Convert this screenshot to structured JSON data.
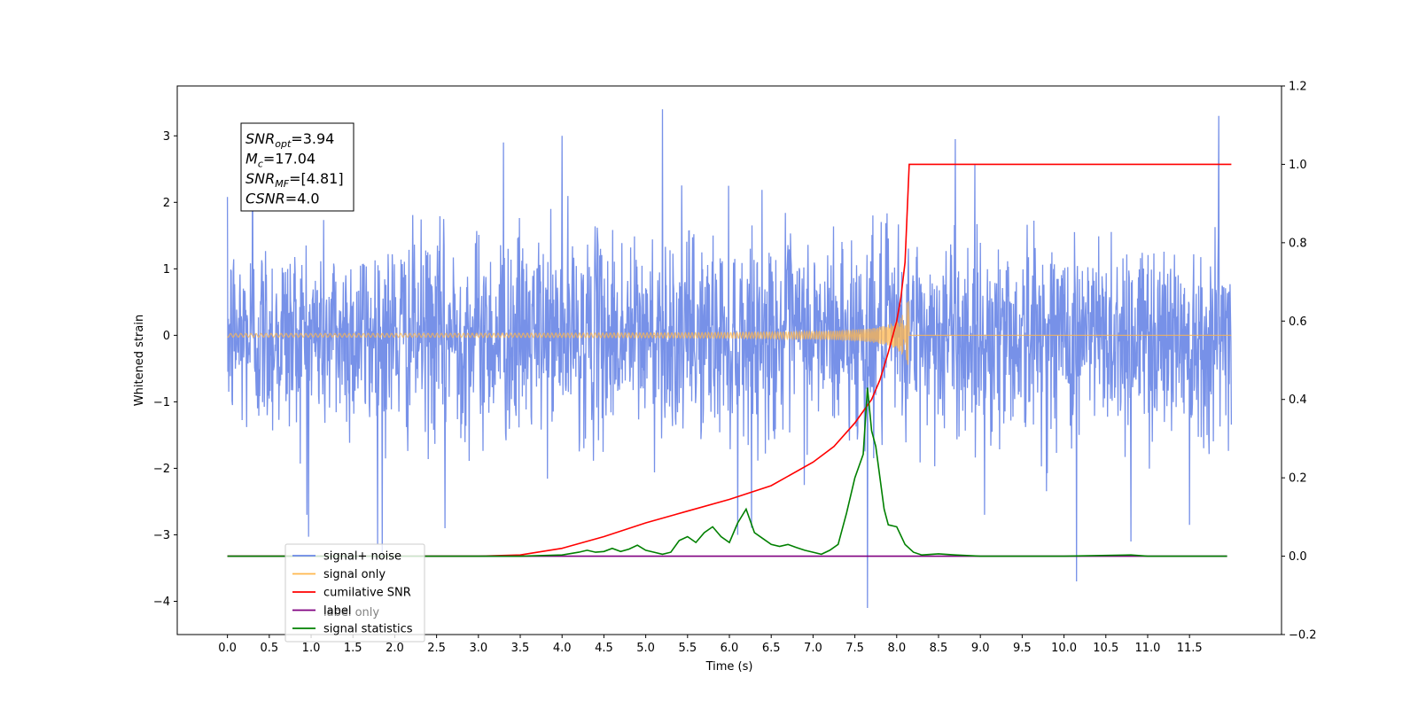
{
  "chart_data": {
    "type": "line",
    "xlabel": "Time (s)",
    "ylabel_left": "Whitened strain",
    "ylabel_right": "",
    "xlim": [
      -0.6,
      12.6
    ],
    "ylim_left": [
      -4.5,
      3.75
    ],
    "ylim_right": [
      -0.2,
      1.2
    ],
    "x_ticks": [
      0.0,
      0.5,
      1.0,
      1.5,
      2.0,
      2.5,
      3.0,
      3.5,
      4.0,
      4.5,
      5.0,
      5.5,
      6.0,
      6.5,
      7.0,
      7.5,
      8.0,
      8.5,
      9.0,
      9.5,
      10.0,
      10.5,
      11.0,
      11.5
    ],
    "x_tick_labels": [
      "0.0",
      "0.5",
      "1.0",
      "1.5",
      "2.0",
      "2.5",
      "3.0",
      "3.5",
      "4.0",
      "4.5",
      "5.0",
      "5.5",
      "6.0",
      "6.5",
      "7.0",
      "7.5",
      "8.0",
      "8.5",
      "9.0",
      "9.5",
      "10.0",
      "10.5",
      "11.0",
      "11.5"
    ],
    "y_left_ticks": [
      3,
      2,
      1,
      0,
      -1,
      -2,
      -3,
      -4
    ],
    "y_left_tick_labels": [
      "3",
      "2",
      "1",
      "0",
      "−1",
      "−2",
      "−3",
      "−4"
    ],
    "y_right_ticks": [
      1.2,
      1.0,
      0.8,
      0.6,
      0.4,
      0.2,
      0.0,
      -0.2
    ],
    "y_right_tick_labels": [
      "1.2",
      "1.0",
      "0.8",
      "0.6",
      "0.4",
      "0.2",
      "0.0",
      "−0.2"
    ],
    "grid": false,
    "legend_position": "bottom-left",
    "series": [
      {
        "name": "signal+ noise",
        "axis": "left",
        "color": "#6b88e6",
        "kind": "noise",
        "x_range": [
          0.0,
          12.0
        ],
        "sigma": 0.75,
        "spikes": [
          {
            "x": 1.85,
            "y": -3.3
          },
          {
            "x": 5.2,
            "y": 3.4
          },
          {
            "x": 7.65,
            "y": -4.1
          },
          {
            "x": 10.15,
            "y": -3.7
          },
          {
            "x": 11.85,
            "y": 3.3
          },
          {
            "x": 0.95,
            "y": -2.7
          },
          {
            "x": 2.6,
            "y": -2.9
          },
          {
            "x": 4.0,
            "y": 3.0
          },
          {
            "x": 9.05,
            "y": -2.7
          },
          {
            "x": 11.5,
            "y": -2.85
          },
          {
            "x": 6.1,
            "y": -3.0
          },
          {
            "x": 3.3,
            "y": 2.9
          },
          {
            "x": 8.7,
            "y": 2.95
          },
          {
            "x": 10.8,
            "y": -3.1
          },
          {
            "x": 0.3,
            "y": 3.1
          }
        ]
      },
      {
        "name": "signal only",
        "axis": "left",
        "color": "#ffb74d",
        "kind": "chirp",
        "x_range": [
          0.0,
          12.0
        ],
        "merger_time": 8.15,
        "peak_amplitude": 0.72
      },
      {
        "name": "cumilative SNR",
        "axis": "right",
        "color": "#ff0000",
        "x": [
          0.0,
          1.0,
          2.0,
          3.0,
          3.5,
          4.0,
          4.5,
          5.0,
          5.5,
          6.0,
          6.5,
          7.0,
          7.25,
          7.5,
          7.7,
          7.8,
          7.9,
          8.0,
          8.05,
          8.1,
          8.15,
          9.0,
          10.0,
          11.0,
          12.0
        ],
        "y": [
          0.0,
          0.0,
          0.0,
          0.0,
          0.003,
          0.02,
          0.05,
          0.085,
          0.115,
          0.145,
          0.18,
          0.24,
          0.28,
          0.34,
          0.4,
          0.45,
          0.52,
          0.6,
          0.66,
          0.75,
          1.0,
          1.0,
          1.0,
          1.0,
          1.0
        ]
      },
      {
        "name": "label",
        "axis": "right",
        "color": "#800080",
        "x": [
          0.0,
          11.95
        ],
        "y": [
          0.0,
          0.0
        ]
      },
      {
        "name": "label only",
        "axis": "right",
        "color": "#800080",
        "hidden": true,
        "x": [],
        "y": []
      },
      {
        "name": "signal statistics",
        "axis": "right",
        "color": "#008000",
        "x": [
          0.0,
          3.5,
          4.0,
          4.2,
          4.3,
          4.4,
          4.5,
          4.6,
          4.7,
          4.8,
          4.9,
          5.0,
          5.1,
          5.2,
          5.3,
          5.4,
          5.5,
          5.6,
          5.7,
          5.8,
          5.9,
          6.0,
          6.1,
          6.2,
          6.3,
          6.4,
          6.5,
          6.6,
          6.7,
          6.8,
          6.9,
          7.0,
          7.1,
          7.2,
          7.3,
          7.4,
          7.5,
          7.6,
          7.65,
          7.7,
          7.75,
          7.8,
          7.85,
          7.9,
          8.0,
          8.1,
          8.2,
          8.3,
          8.5,
          8.7,
          9.0,
          10.0,
          10.8,
          11.0,
          11.95
        ],
        "y": [
          0.0,
          0.0,
          0.003,
          0.01,
          0.015,
          0.01,
          0.012,
          0.02,
          0.012,
          0.018,
          0.028,
          0.015,
          0.01,
          0.005,
          0.01,
          0.04,
          0.05,
          0.035,
          0.06,
          0.075,
          0.05,
          0.035,
          0.085,
          0.12,
          0.06,
          0.045,
          0.03,
          0.025,
          0.03,
          0.022,
          0.015,
          0.01,
          0.005,
          0.015,
          0.03,
          0.11,
          0.2,
          0.26,
          0.43,
          0.32,
          0.28,
          0.2,
          0.12,
          0.08,
          0.075,
          0.03,
          0.01,
          0.003,
          0.006,
          0.003,
          0.0,
          0.0,
          0.003,
          0.0,
          0.0
        ]
      }
    ],
    "legend": [
      {
        "label": "signal+ noise",
        "color": "#6b88e6"
      },
      {
        "label": "signal only",
        "color": "#ffb74d"
      },
      {
        "label": "cumilative SNR",
        "color": "#ff0000"
      },
      {
        "label": "label",
        "color": "#800080"
      },
      {
        "label": "signal statistics",
        "color": "#008000"
      }
    ],
    "legend_overlap_text": [
      {
        "text": "label only",
        "color": "#808080"
      }
    ],
    "annotation": {
      "lines": [
        {
          "name": "SNR",
          "sub": "opt",
          "value": "=3.94"
        },
        {
          "name": "M",
          "sub": "c",
          "value": "=17.04"
        },
        {
          "name": "SNR",
          "sub": "MF",
          "value": "=[4.81]"
        },
        {
          "name": "CSNR",
          "sub": "",
          "value": "=4.0"
        }
      ]
    }
  }
}
